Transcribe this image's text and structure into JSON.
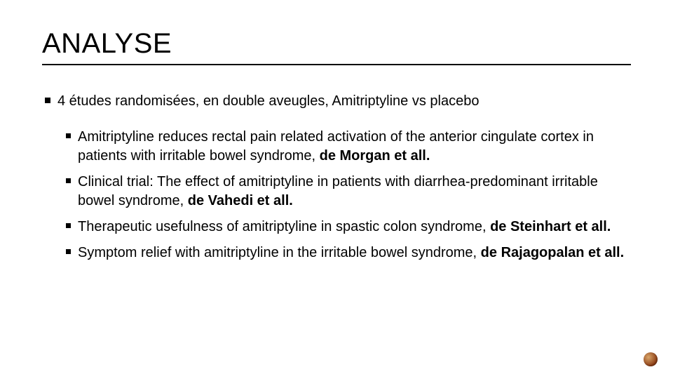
{
  "title": "ANALYSE",
  "title_fontsize": 40,
  "title_color": "#000000",
  "underline_color": "#000000",
  "body_fontsize": 20,
  "body_color": "#000000",
  "background_color": "#ffffff",
  "bullet_color": "#000000",
  "corner_dot_color": "#8a3a12",
  "lvl1_text": "4 études randomisées, en double aveugles, Amitriptyline vs placebo",
  "items": [
    {
      "text": "Amitriptyline reduces rectal pain related activation of the anterior cingulate cortex in patients with irritable bowel syndrome, ",
      "author": "de Morgan et all."
    },
    {
      "text": "Clinical trial: The effect of amitriptyline in patients with diarrhea-predominant irritable bowel syndrome, ",
      "author": "de Vahedi et all."
    },
    {
      "text": "Therapeutic usefulness of amitriptyline in spastic colon syndrome, ",
      "author": "de Steinhart et all."
    },
    {
      "text": "Symptom relief with amitriptyline in the irritable bowel syndrome, ",
      "author": "de Rajagopalan et all."
    }
  ]
}
